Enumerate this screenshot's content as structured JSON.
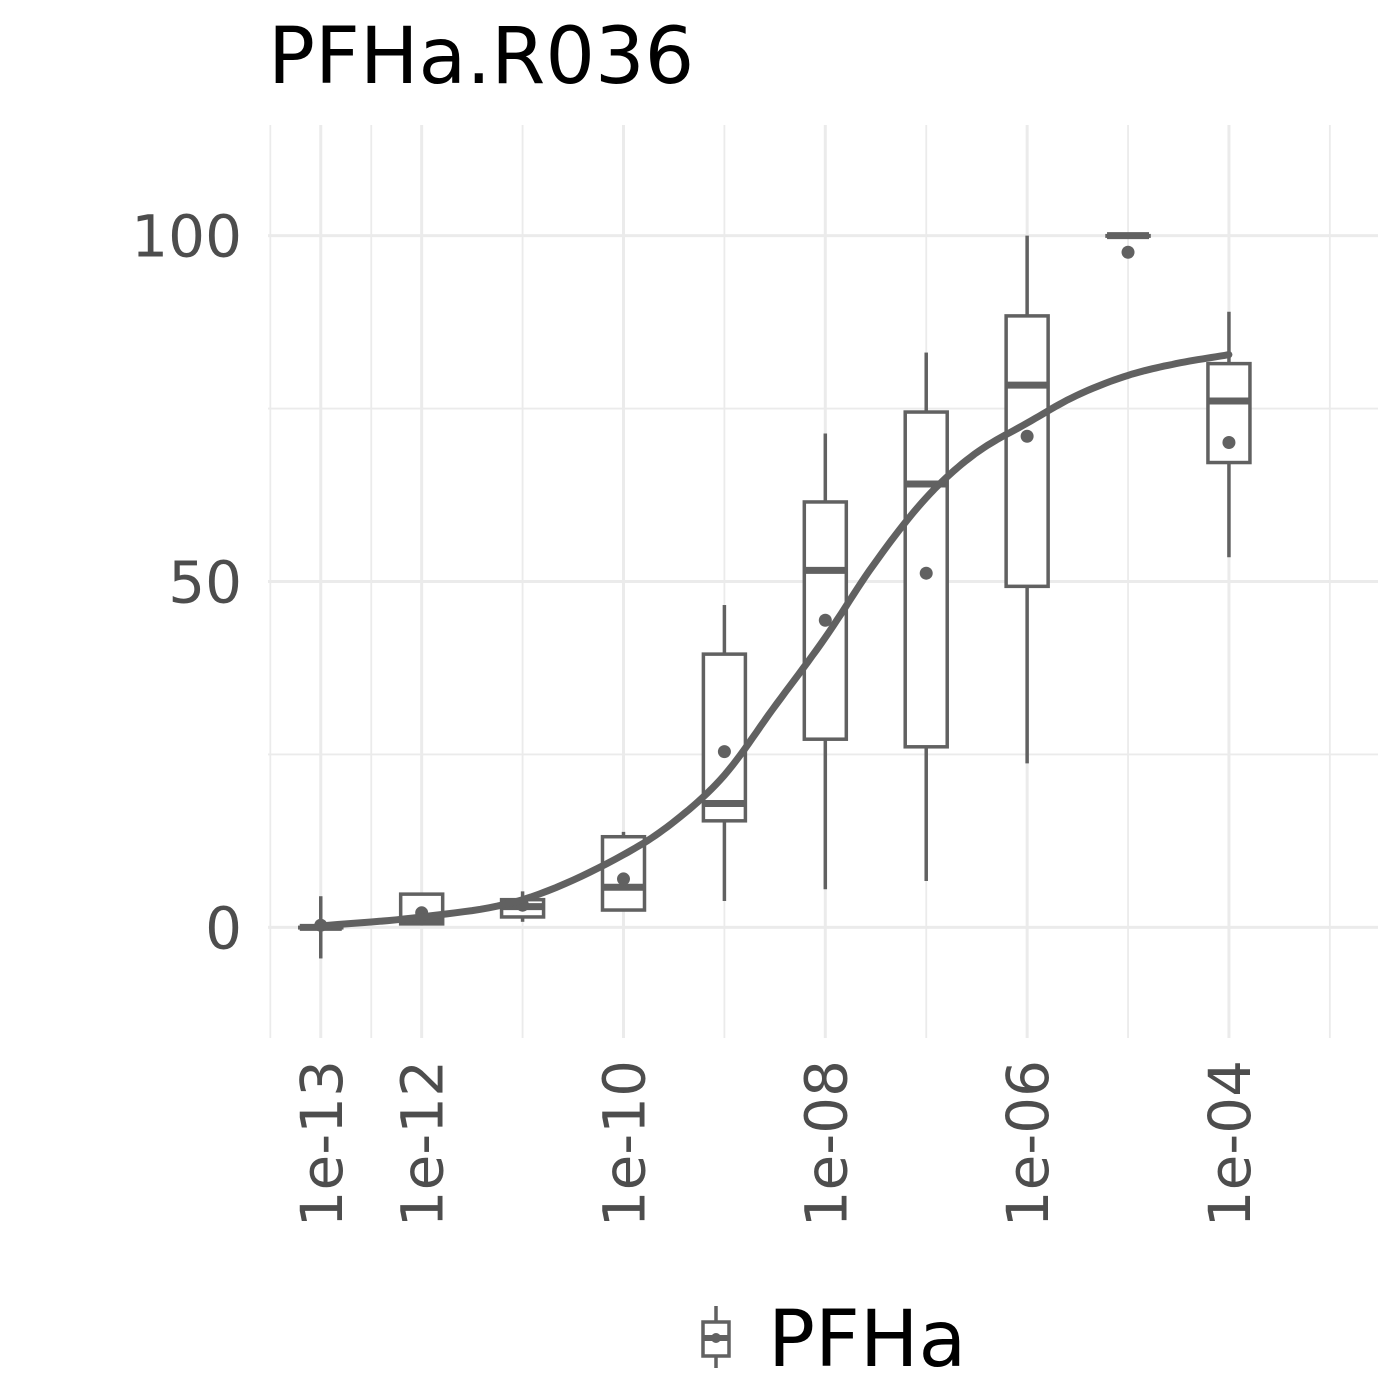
{
  "chart_data": {
    "type": "box",
    "title": "PFHa.R036",
    "xlabel": "",
    "ylabel": "",
    "x_scale": "log10",
    "xlim": [
      3e-14,
      0.003
    ],
    "ylim": [
      -16,
      116
    ],
    "x_ticks": [
      1e-13,
      1e-12,
      1e-10,
      1e-08,
      1e-06,
      0.0001
    ],
    "x_tick_labels": [
      "1e-13",
      "1e-12",
      "1e-10",
      "1e-08",
      "1e-06",
      "1e-04"
    ],
    "x_minor_gridlines": [
      1e-11,
      1e-09,
      1e-07,
      1e-05,
      0.001
    ],
    "y_ticks": [
      0,
      50,
      100
    ],
    "y_tick_labels": [
      "0",
      "50",
      "100"
    ],
    "y_minor_gridlines": [
      25,
      75
    ],
    "grid": true,
    "legend": {
      "position": "bottom",
      "entries": [
        "PFHa"
      ]
    },
    "series": [
      {
        "name": "PFHa",
        "color": "#616161",
        "boxes": [
          {
            "x": 1e-13,
            "whisker_low": -4.5,
            "q1": 0,
            "median": 0,
            "q3": 0,
            "whisker_high": 4.5,
            "mean": 0.3
          },
          {
            "x": 1e-12,
            "whisker_low": 0.5,
            "q1": 0.5,
            "median": 1,
            "q3": 4.8,
            "whisker_high": 5,
            "mean": 2.1
          },
          {
            "x": 1e-11,
            "whisker_low": 0.8,
            "q1": 1.5,
            "median": 3,
            "q3": 4,
            "whisker_high": 5.2,
            "mean": 3.2
          },
          {
            "x": 1e-10,
            "whisker_low": 2.5,
            "q1": 2.5,
            "median": 5.8,
            "q3": 13.1,
            "whisker_high": 13.8,
            "mean": 7
          },
          {
            "x": 1e-09,
            "whisker_low": 3.8,
            "q1": 15.4,
            "median": 17.9,
            "q3": 39.5,
            "whisker_high": 46.6,
            "mean": 25.4
          },
          {
            "x": 1e-08,
            "whisker_low": 5.5,
            "q1": 27.2,
            "median": 51.6,
            "q3": 61.5,
            "whisker_high": 71.4,
            "mean": 44.4
          },
          {
            "x": 1e-07,
            "whisker_low": 6.7,
            "q1": 26.1,
            "median": 64.1,
            "q3": 74.5,
            "whisker_high": 83.1,
            "mean": 51.2
          },
          {
            "x": 1e-06,
            "whisker_low": 23.7,
            "q1": 49.3,
            "median": 78.4,
            "q3": 88.4,
            "whisker_high": 100,
            "mean": 71
          },
          {
            "x": 1e-05,
            "whisker_low": 100,
            "q1": 100,
            "median": 100,
            "q3": 100,
            "whisker_high": 100,
            "mean": 97.6
          },
          {
            "x": 0.0001,
            "whisker_low": 53.5,
            "q1": 67.2,
            "median": 76.1,
            "q3": 81.5,
            "whisker_high": 89,
            "mean": 70.1
          }
        ],
        "fit_curve": {
          "x": [
            1e-13,
            1e-12,
            1e-11,
            1e-10,
            3e-10,
            1e-09,
            3e-09,
            1e-08,
            3e-08,
            1e-07,
            3e-07,
            1e-06,
            3e-06,
            1e-05,
            3e-05,
            0.0001
          ],
          "y": [
            0.2,
            1.5,
            4,
            10.5,
            15,
            22,
            31.5,
            41.9,
            52.4,
            62.1,
            68.4,
            72.9,
            76.8,
            79.8,
            81.5,
            82.8
          ]
        }
      }
    ]
  }
}
